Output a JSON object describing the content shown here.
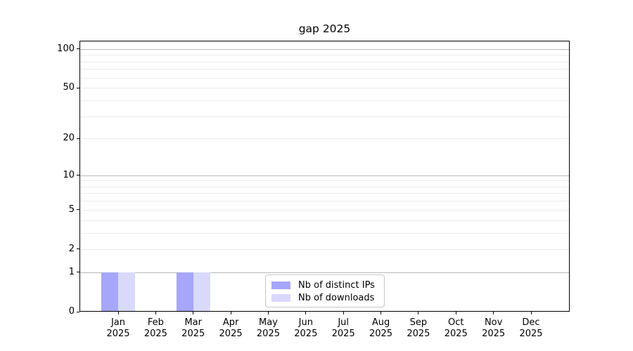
{
  "title": "gap 2025",
  "chart_data": {
    "type": "bar",
    "title": "gap 2025",
    "x": {
      "months": [
        "Jan",
        "Feb",
        "Mar",
        "Apr",
        "May",
        "Jun",
        "Jul",
        "Aug",
        "Sep",
        "Oct",
        "Nov",
        "Dec"
      ],
      "year": "2025"
    },
    "series": [
      {
        "name": "Nb of distinct IPs",
        "color": "#a6a6fb",
        "values": [
          1,
          0,
          1,
          0,
          0,
          0,
          0,
          0,
          0,
          0,
          0,
          0
        ]
      },
      {
        "name": "Nb of downloads",
        "color": "#d9d9fc",
        "values": [
          1,
          0,
          1,
          0,
          0,
          0,
          0,
          0,
          0,
          0,
          0,
          0
        ]
      }
    ],
    "y_axis": {
      "scale": "log1p",
      "ticks": [
        0,
        1,
        2,
        5,
        10,
        20,
        50,
        100
      ],
      "minor_gridlines": [
        3,
        4,
        6,
        7,
        8,
        9,
        30,
        40,
        60,
        70,
        80,
        90
      ],
      "strong_gridlines": [
        1,
        10,
        100
      ],
      "max": 116
    },
    "legend": {
      "position": "lower center",
      "entries": [
        "Nb of distinct IPs",
        "Nb of downloads"
      ]
    },
    "grid": true
  }
}
